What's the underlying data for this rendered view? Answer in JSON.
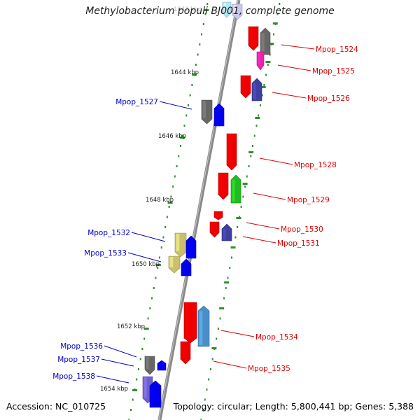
{
  "title": "Methylobacterium populi BJ001, complete genome",
  "footer": {
    "accession": "Accession: NC_010725",
    "summary": "Topology: circular; Length: 5,800,441 bp; Genes: 5,388"
  },
  "colors": {
    "forward_label": "#dd0000",
    "reverse_label": "#0000cc",
    "backbone": "#8a8a8a",
    "tick": "#2f8f2f",
    "red": "#ee0000",
    "grey": "#666666",
    "navy": "#3f3fa0",
    "blue": "#0000ee",
    "green": "#22bb22",
    "pink": "#ee22aa",
    "khaki": "#c9bf6e",
    "steel": "#4a8ec8",
    "violet": "#6f5fcc",
    "cyan": "#aee8f2",
    "lavender": "#c8c8ee"
  },
  "scale_labels": [
    "1642 kbp",
    "1644 kbp",
    "1646 kbp",
    "1648 kbp",
    "1650 kbp",
    "1652 kbp",
    "1654 kbp"
  ],
  "forward_labels": [
    "Mpop_1524",
    "Mpop_1525",
    "Mpop_1526",
    "Mpop_1528",
    "Mpop_1529",
    "Mpop_1530",
    "Mpop_1531",
    "Mpop_1534",
    "Mpop_1535"
  ],
  "reverse_labels": [
    "Mpop_1527",
    "Mpop_1532",
    "Mpop_1533",
    "Mpop_1536",
    "Mpop_1537",
    "Mpop_1538"
  ]
}
